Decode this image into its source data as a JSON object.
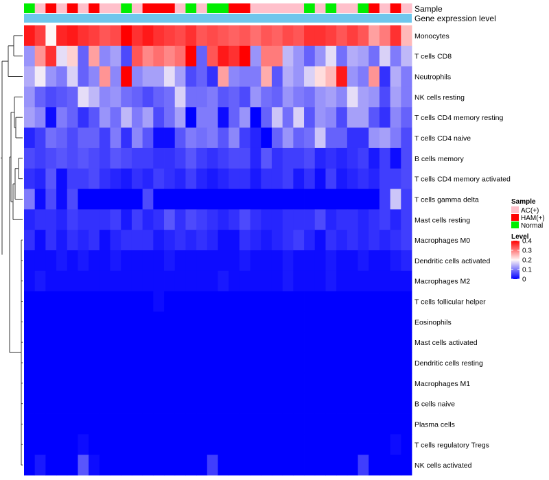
{
  "chart_data": {
    "type": "heatmap",
    "annotation_tracks": [
      "Sample",
      "Gene expression level"
    ],
    "sample_groups": [
      "Normal",
      "AC(+)",
      "HAM(+)",
      "AC(+)",
      "HAM(+)",
      "AC(+)",
      "HAM(+)",
      "AC(+)",
      "AC(+)",
      "Normal",
      "AC(+)",
      "HAM(+)",
      "HAM(+)",
      "HAM(+)",
      "AC(+)",
      "Normal",
      "AC(+)",
      "Normal",
      "Normal",
      "HAM(+)",
      "HAM(+)",
      "AC(+)",
      "AC(+)",
      "AC(+)",
      "AC(+)",
      "AC(+)",
      "Normal",
      "AC(+)",
      "Normal",
      "AC(+)",
      "AC(+)",
      "Normal",
      "HAM(+)",
      "AC(+)",
      "HAM(+)",
      "AC(+)"
    ],
    "gene_expression_color": "#6ec6ec",
    "rows": [
      "Monocytes",
      "T cells CD8",
      "Neutrophils",
      "NK cells resting",
      "T cells CD4 memory resting",
      "T cells CD4 naive",
      "B cells memory",
      "T cells CD4 memory activated",
      "T cells gamma delta",
      "Mast cells resting",
      "Macrophages M0",
      "Dendritic cells activated",
      "Macrophages M2",
      "T cells follicular helper",
      "Eosinophils",
      "Mast cells activated",
      "Dendritic cells resting",
      "Macrophages M1",
      "B cells naive",
      "Plasma cells",
      "T cells regulatory  Tregs",
      "NK cells activated"
    ],
    "values": [
      [
        0.38,
        0.35,
        0.2,
        0.37,
        0.38,
        0.36,
        0.35,
        0.33,
        0.34,
        0.41,
        0.36,
        0.38,
        0.36,
        0.35,
        0.34,
        0.36,
        0.33,
        0.34,
        0.33,
        0.32,
        0.33,
        0.31,
        0.33,
        0.32,
        0.34,
        0.33,
        0.36,
        0.36,
        0.35,
        0.33,
        0.35,
        0.33,
        0.27,
        0.3,
        0.36,
        0.25
      ],
      [
        0.12,
        0.28,
        0.36,
        0.18,
        0.23,
        0.08,
        0.27,
        0.11,
        0.13,
        0.06,
        0.33,
        0.29,
        0.31,
        0.29,
        0.31,
        0.4,
        0.08,
        0.33,
        0.38,
        0.36,
        0.4,
        0.12,
        0.3,
        0.3,
        0.15,
        0.12,
        0.08,
        0.12,
        0.18,
        0.09,
        0.14,
        0.13,
        0.09,
        0.17,
        0.1,
        0.15
      ],
      [
        0.14,
        0.19,
        0.12,
        0.1,
        0.17,
        0.08,
        0.11,
        0.28,
        0.11,
        0.4,
        0.11,
        0.13,
        0.13,
        0.18,
        0.13,
        0.06,
        0.08,
        0.04,
        0.27,
        0.11,
        0.1,
        0.1,
        0.26,
        0.07,
        0.14,
        0.12,
        0.17,
        0.22,
        0.25,
        0.38,
        0.12,
        0.1,
        0.28,
        0.04,
        0.14,
        0.1
      ],
      [
        0.12,
        0.08,
        0.06,
        0.07,
        0.08,
        0.18,
        0.15,
        0.11,
        0.12,
        0.09,
        0.08,
        0.06,
        0.08,
        0.09,
        0.17,
        0.09,
        0.09,
        0.1,
        0.07,
        0.08,
        0.06,
        0.12,
        0.09,
        0.08,
        0.12,
        0.1,
        0.09,
        0.12,
        0.13,
        0.11,
        0.18,
        0.13,
        0.12,
        0.06,
        0.13,
        0.1
      ],
      [
        0.13,
        0.11,
        0.01,
        0.1,
        0.08,
        0.04,
        0.07,
        0.12,
        0.09,
        0.15,
        0.1,
        0.13,
        0.06,
        0.09,
        0.13,
        0.0,
        0.1,
        0.1,
        0.01,
        0.08,
        0.12,
        0.0,
        0.08,
        0.16,
        0.09,
        0.17,
        0.07,
        0.12,
        0.11,
        0.06,
        0.13,
        0.13,
        0.07,
        0.04,
        0.11,
        0.08
      ],
      [
        0.03,
        0.05,
        0.09,
        0.08,
        0.06,
        0.08,
        0.08,
        0.05,
        0.1,
        0.04,
        0.11,
        0.07,
        0.01,
        0.01,
        0.07,
        0.1,
        0.09,
        0.1,
        0.07,
        0.11,
        0.05,
        0.03,
        0.0,
        0.08,
        0.12,
        0.08,
        0.09,
        0.16,
        0.08,
        0.08,
        0.04,
        0.04,
        0.12,
        0.13,
        0.1,
        0.06
      ],
      [
        0.06,
        0.05,
        0.06,
        0.07,
        0.06,
        0.07,
        0.06,
        0.05,
        0.07,
        0.06,
        0.05,
        0.05,
        0.04,
        0.04,
        0.05,
        0.07,
        0.05,
        0.04,
        0.05,
        0.06,
        0.06,
        0.03,
        0.07,
        0.04,
        0.05,
        0.05,
        0.06,
        0.03,
        0.04,
        0.03,
        0.04,
        0.05,
        0.02,
        0.05,
        0.01,
        0.06
      ],
      [
        0.04,
        0.03,
        0.07,
        0.01,
        0.05,
        0.05,
        0.06,
        0.04,
        0.03,
        0.02,
        0.04,
        0.03,
        0.05,
        0.04,
        0.03,
        0.05,
        0.03,
        0.02,
        0.03,
        0.04,
        0.04,
        0.02,
        0.04,
        0.04,
        0.05,
        0.02,
        0.04,
        0.01,
        0.05,
        0.02,
        0.03,
        0.04,
        0.03,
        0.05,
        0.05,
        0.06
      ],
      [
        0.1,
        0.01,
        0.06,
        0.01,
        0.06,
        0.0,
        0.0,
        0.0,
        0.0,
        0.0,
        0.0,
        0.06,
        0.0,
        0.0,
        0.0,
        0.0,
        0.0,
        0.0,
        0.0,
        0.0,
        0.0,
        0.0,
        0.0,
        0.0,
        0.0,
        0.0,
        0.0,
        0.0,
        0.0,
        0.0,
        0.0,
        0.0,
        0.0,
        0.05,
        0.16,
        0.05
      ],
      [
        0.03,
        0.04,
        0.04,
        0.03,
        0.05,
        0.04,
        0.04,
        0.04,
        0.05,
        0.02,
        0.05,
        0.03,
        0.04,
        0.07,
        0.04,
        0.06,
        0.05,
        0.04,
        0.03,
        0.04,
        0.06,
        0.04,
        0.03,
        0.03,
        0.04,
        0.04,
        0.04,
        0.06,
        0.03,
        0.04,
        0.04,
        0.03,
        0.04,
        0.05,
        0.03,
        0.05
      ],
      [
        0.04,
        0.01,
        0.04,
        0.02,
        0.04,
        0.03,
        0.04,
        0.01,
        0.03,
        0.04,
        0.04,
        0.04,
        0.02,
        0.03,
        0.04,
        0.03,
        0.04,
        0.03,
        0.01,
        0.01,
        0.04,
        0.03,
        0.02,
        0.03,
        0.04,
        0.05,
        0.03,
        0.01,
        0.04,
        0.03,
        0.04,
        0.03,
        0.04,
        0.03,
        0.04,
        0.05
      ],
      [
        0.01,
        0.01,
        0.01,
        0.02,
        0.01,
        0.02,
        0.01,
        0.01,
        0.02,
        0.01,
        0.01,
        0.01,
        0.01,
        0.02,
        0.01,
        0.01,
        0.01,
        0.01,
        0.01,
        0.01,
        0.02,
        0.01,
        0.01,
        0.01,
        0.02,
        0.01,
        0.01,
        0.01,
        0.02,
        0.01,
        0.01,
        0.02,
        0.01,
        0.01,
        0.02,
        0.03
      ],
      [
        0.01,
        0.02,
        0.01,
        0.01,
        0.01,
        0.01,
        0.01,
        0.01,
        0.01,
        0.01,
        0.01,
        0.01,
        0.01,
        0.01,
        0.01,
        0.01,
        0.01,
        0.01,
        0.02,
        0.01,
        0.01,
        0.01,
        0.01,
        0.01,
        0.02,
        0.01,
        0.01,
        0.01,
        0.02,
        0.01,
        0.01,
        0.01,
        0.01,
        0.01,
        0.01,
        0.01
      ],
      [
        0.0,
        0.0,
        0.0,
        0.0,
        0.0,
        0.0,
        0.0,
        0.0,
        0.0,
        0.0,
        0.0,
        0.0,
        0.01,
        0.0,
        0.0,
        0.0,
        0.0,
        0.0,
        0.0,
        0.0,
        0.0,
        0.0,
        0.0,
        0.0,
        0.0,
        0.0,
        0.0,
        0.0,
        0.0,
        0.0,
        0.0,
        0.0,
        0.0,
        0.0,
        0.0,
        0.0
      ],
      [
        0.0,
        0.0,
        0.0,
        0.0,
        0.0,
        0.0,
        0.0,
        0.0,
        0.0,
        0.0,
        0.0,
        0.0,
        0.0,
        0.0,
        0.0,
        0.0,
        0.0,
        0.0,
        0.0,
        0.0,
        0.0,
        0.0,
        0.0,
        0.0,
        0.0,
        0.0,
        0.0,
        0.0,
        0.0,
        0.0,
        0.0,
        0.0,
        0.0,
        0.0,
        0.0,
        0.0
      ],
      [
        0.0,
        0.0,
        0.0,
        0.0,
        0.0,
        0.0,
        0.0,
        0.0,
        0.0,
        0.0,
        0.0,
        0.0,
        0.0,
        0.0,
        0.0,
        0.0,
        0.0,
        0.0,
        0.0,
        0.0,
        0.0,
        0.0,
        0.0,
        0.0,
        0.0,
        0.0,
        0.0,
        0.0,
        0.0,
        0.0,
        0.0,
        0.0,
        0.0,
        0.0,
        0.0,
        0.0
      ],
      [
        0.0,
        0.0,
        0.0,
        0.0,
        0.0,
        0.0,
        0.0,
        0.0,
        0.0,
        0.0,
        0.0,
        0.0,
        0.0,
        0.0,
        0.0,
        0.0,
        0.0,
        0.0,
        0.0,
        0.0,
        0.0,
        0.0,
        0.0,
        0.0,
        0.0,
        0.0,
        0.0,
        0.0,
        0.0,
        0.0,
        0.0,
        0.0,
        0.0,
        0.0,
        0.0,
        0.0
      ],
      [
        0.0,
        0.0,
        0.0,
        0.0,
        0.0,
        0.0,
        0.0,
        0.0,
        0.0,
        0.0,
        0.0,
        0.0,
        0.0,
        0.0,
        0.0,
        0.0,
        0.0,
        0.0,
        0.0,
        0.0,
        0.0,
        0.0,
        0.0,
        0.0,
        0.0,
        0.0,
        0.0,
        0.0,
        0.0,
        0.0,
        0.0,
        0.0,
        0.0,
        0.0,
        0.0,
        0.0
      ],
      [
        0.0,
        0.0,
        0.0,
        0.0,
        0.0,
        0.0,
        0.0,
        0.0,
        0.0,
        0.0,
        0.0,
        0.0,
        0.0,
        0.0,
        0.0,
        0.0,
        0.0,
        0.0,
        0.0,
        0.0,
        0.0,
        0.0,
        0.0,
        0.0,
        0.0,
        0.0,
        0.0,
        0.0,
        0.0,
        0.0,
        0.0,
        0.0,
        0.0,
        0.0,
        0.0,
        0.0
      ],
      [
        0.0,
        0.0,
        0.0,
        0.0,
        0.0,
        0.0,
        0.0,
        0.0,
        0.0,
        0.0,
        0.0,
        0.0,
        0.0,
        0.0,
        0.0,
        0.0,
        0.0,
        0.0,
        0.0,
        0.0,
        0.0,
        0.0,
        0.0,
        0.0,
        0.0,
        0.0,
        0.0,
        0.0,
        0.0,
        0.0,
        0.0,
        0.0,
        0.0,
        0.0,
        0.0,
        0.0
      ],
      [
        0.0,
        0.0,
        0.0,
        0.0,
        0.0,
        0.01,
        0.0,
        0.0,
        0.0,
        0.0,
        0.0,
        0.0,
        0.0,
        0.0,
        0.0,
        0.0,
        0.0,
        0.0,
        0.0,
        0.0,
        0.0,
        0.0,
        0.0,
        0.0,
        0.0,
        0.0,
        0.0,
        0.0,
        0.0,
        0.0,
        0.0,
        0.0,
        0.0,
        0.0,
        0.01,
        0.0
      ],
      [
        0.0,
        0.02,
        0.0,
        0.0,
        0.0,
        0.07,
        0.01,
        0.0,
        0.0,
        0.0,
        0.0,
        0.0,
        0.0,
        0.0,
        0.0,
        0.0,
        0.0,
        0.05,
        0.0,
        0.0,
        0.0,
        0.0,
        0.0,
        0.0,
        0.0,
        0.0,
        0.0,
        0.0,
        0.0,
        0.0,
        0.0,
        0.05,
        0.0,
        0.0,
        0.0,
        0.0
      ]
    ],
    "color_scale": {
      "stops": [
        {
          "value": 0,
          "color": "#0000ff"
        },
        {
          "value": 0.2,
          "color": "#fff6f6"
        },
        {
          "value": 0.4,
          "color": "#ff0000"
        }
      ]
    },
    "legend": {
      "sample_title": "Sample",
      "sample_entries": [
        {
          "label": "AC(+)",
          "color": "#ffc0cb"
        },
        {
          "label": "HAM(+)",
          "color": "#ff0000"
        },
        {
          "label": "Normal",
          "color": "#00ee00"
        }
      ],
      "level_title": "Level",
      "level_ticks": [
        "0.4",
        "0.3",
        "0.2",
        "0.1",
        "0"
      ],
      "level_tick_values": [
        0.4,
        0.3,
        0.2,
        0.1,
        0
      ]
    },
    "dendrogram": "row clustering tree (left)"
  }
}
